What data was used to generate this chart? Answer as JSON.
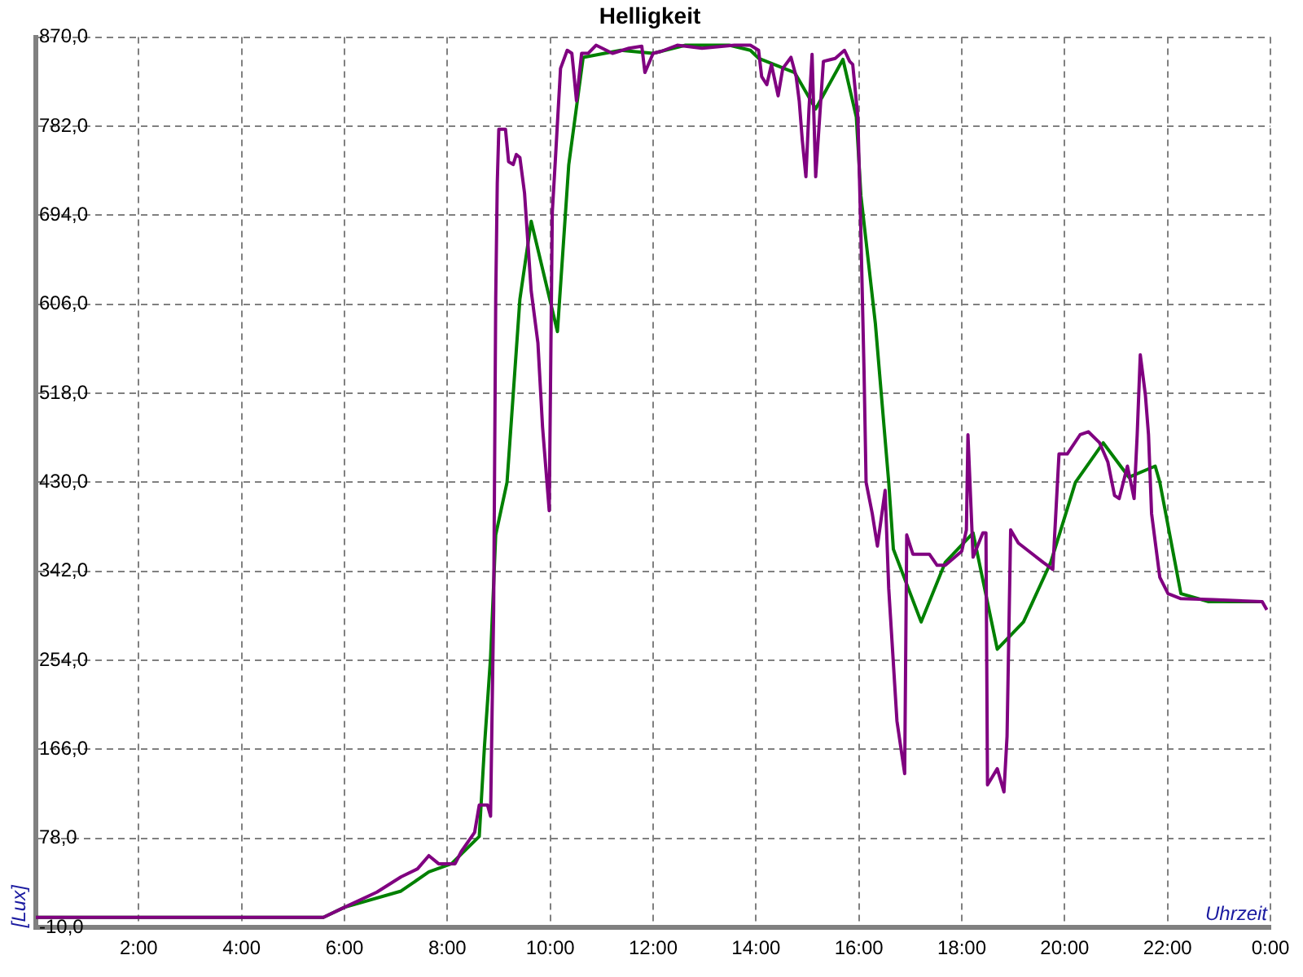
{
  "chart_data": {
    "type": "line",
    "title": "Helligkeit",
    "xlabel": "Uhrzeit",
    "ylabel": "[Lux]",
    "xlim": [
      0,
      24
    ],
    "xticks": [
      {
        "value": 2,
        "label": "2:00"
      },
      {
        "value": 4,
        "label": "4:00"
      },
      {
        "value": 6,
        "label": "6:00"
      },
      {
        "value": 8,
        "label": "8:00"
      },
      {
        "value": 10,
        "label": "10:00"
      },
      {
        "value": 12,
        "label": "12:00"
      },
      {
        "value": 14,
        "label": "14:00"
      },
      {
        "value": 16,
        "label": "16:00"
      },
      {
        "value": 18,
        "label": "18:00"
      },
      {
        "value": 20,
        "label": "20:00"
      },
      {
        "value": 22,
        "label": "22:00"
      },
      {
        "value": 24,
        "label": "0:00"
      }
    ],
    "ylim": [
      -10,
      870
    ],
    "yticks": [
      {
        "value": -10,
        "label": "-10,0"
      },
      {
        "value": 78,
        "label": "78,0"
      },
      {
        "value": 166,
        "label": "166,0"
      },
      {
        "value": 254,
        "label": "254,0"
      },
      {
        "value": 342,
        "label": "342,0"
      },
      {
        "value": 430,
        "label": "430,0"
      },
      {
        "value": 518,
        "label": "518,0"
      },
      {
        "value": 606,
        "label": "606,0"
      },
      {
        "value": 694,
        "label": "694,0"
      },
      {
        "value": 782,
        "label": "782,0"
      },
      {
        "value": 870,
        "label": "870,0"
      }
    ],
    "grid": true,
    "line_style": "solid",
    "series": [
      {
        "color": "#800080",
        "x": [
          0,
          5.59,
          6.0,
          6.63,
          7.1,
          7.42,
          7.64,
          7.83,
          8.15,
          8.27,
          8.53,
          8.62,
          8.78,
          8.84,
          8.87,
          8.9,
          8.94,
          8.97,
          9.0,
          9.13,
          9.19,
          9.28,
          9.34,
          9.41,
          9.5,
          9.63,
          9.76,
          9.85,
          9.98,
          10.04,
          10.1,
          10.2,
          10.33,
          10.42,
          10.45,
          10.51,
          10.61,
          10.74,
          10.89,
          11.21,
          11.53,
          11.78,
          11.84,
          12.0,
          12.16,
          12.47,
          12.95,
          13.58,
          13.89,
          14.05,
          14.11,
          14.21,
          14.3,
          14.43,
          14.52,
          14.68,
          14.78,
          14.84,
          14.9,
          14.97,
          15.03,
          15.09,
          15.16,
          15.31,
          15.54,
          15.72,
          15.82,
          15.88,
          15.98,
          16.04,
          16.1,
          16.14,
          16.26,
          16.36,
          16.51,
          16.58,
          16.74,
          16.89,
          16.93,
          17.05,
          17.37,
          17.52,
          17.68,
          18.0,
          18.09,
          18.12,
          18.22,
          18.41,
          18.47,
          18.5,
          18.69,
          18.82,
          18.88,
          18.95,
          19.1,
          19.58,
          19.77,
          19.89,
          20.05,
          20.3,
          20.46,
          20.68,
          20.84,
          20.97,
          21.06,
          21.22,
          21.35,
          21.41,
          21.47,
          21.57,
          21.63,
          21.69,
          21.85,
          22.01,
          22.26,
          22.89,
          23.84,
          23.93
        ],
        "values": [
          0,
          0,
          10,
          25,
          40,
          48,
          61,
          53,
          53,
          65,
          84,
          111,
          111,
          100,
          205,
          304,
          611,
          725,
          779,
          779,
          747,
          744,
          754,
          751,
          716,
          619,
          568,
          485,
          402,
          697,
          749,
          839,
          857,
          854,
          839,
          807,
          854,
          854,
          862,
          854,
          859,
          861,
          835,
          854,
          856,
          862,
          859,
          862,
          862,
          857,
          831,
          823,
          843,
          812,
          839,
          850,
          831,
          807,
          768,
          732,
          799,
          853,
          732,
          846,
          849,
          857,
          846,
          843,
          791,
          674,
          540,
          430,
          399,
          367,
          422,
          325,
          194,
          142,
          378,
          359,
          359,
          348,
          348,
          362,
          383,
          477,
          356,
          380,
          380,
          131,
          147,
          124,
          179,
          383,
          370,
          351,
          344,
          458,
          458,
          477,
          480,
          469,
          450,
          417,
          414,
          446,
          414,
          477,
          556,
          516,
          477,
          399,
          336,
          320,
          315,
          314,
          312,
          304
        ]
      },
      {
        "color": "#008000",
        "x": [
          0,
          5.59,
          6.0,
          7.1,
          7.64,
          8.08,
          8.62,
          8.72,
          8.84,
          8.94,
          9.16,
          9.41,
          9.63,
          10.14,
          10.36,
          10.64,
          11.37,
          12.0,
          12.63,
          13.48,
          13.89,
          14.05,
          14.75,
          15.16,
          15.69,
          15.95,
          16.04,
          16.32,
          16.58,
          16.67,
          17.21,
          17.68,
          18.22,
          18.69,
          19.2,
          19.73,
          20.21,
          20.75,
          21.25,
          21.76,
          21.85,
          22.26,
          22.8,
          23.84
        ],
        "values": [
          0,
          0,
          10,
          26,
          45,
          53,
          80,
          168,
          257,
          378,
          430,
          611,
          688,
          579,
          744,
          850,
          857,
          854,
          862,
          862,
          857,
          849,
          835,
          799,
          848,
          791,
          713,
          587,
          430,
          364,
          292,
          351,
          380,
          265,
          292,
          351,
          430,
          469,
          435,
          446,
          430,
          320,
          312,
          312
        ]
      }
    ]
  }
}
